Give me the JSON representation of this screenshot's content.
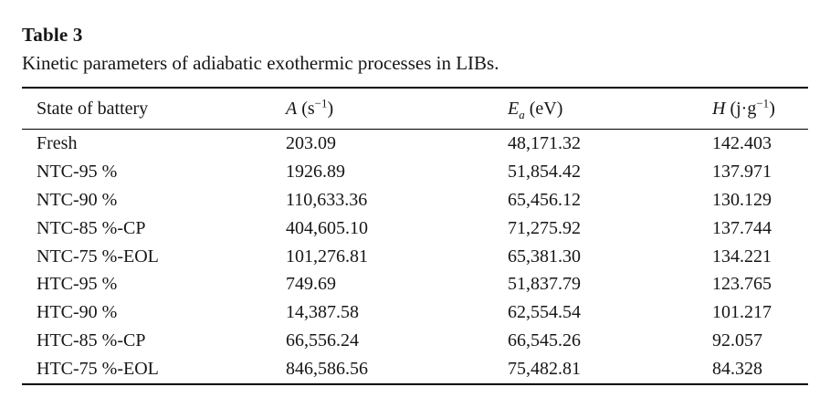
{
  "page": {
    "title": "Table 3",
    "caption": "Kinetic parameters of adiabatic exothermic processes in LIBs."
  },
  "table": {
    "columns": {
      "state": {
        "label": "State of battery"
      },
      "a": {
        "var": "A",
        "open": " (s",
        "sup": "−1",
        "close": ")"
      },
      "ea": {
        "var": "E",
        "sub": "a",
        "open": " (eV)",
        "sup": "",
        "close": ""
      },
      "h": {
        "var": "H",
        "open": " (j·g",
        "sup": "−1",
        "close": ")"
      }
    },
    "rows": [
      {
        "state": "Fresh",
        "a": "203.09",
        "ea": "48,171.32",
        "h": "142.403"
      },
      {
        "state": "NTC-95 %",
        "a": "1926.89",
        "ea": "51,854.42",
        "h": "137.971"
      },
      {
        "state": "NTC-90 %",
        "a": "110,633.36",
        "ea": "65,456.12",
        "h": "130.129"
      },
      {
        "state": "NTC-85 %-CP",
        "a": "404,605.10",
        "ea": "71,275.92",
        "h": "137.744"
      },
      {
        "state": "NTC-75 %-EOL",
        "a": "101,276.81",
        "ea": "65,381.30",
        "h": "134.221"
      },
      {
        "state": "HTC-95 %",
        "a": "749.69",
        "ea": "51,837.79",
        "h": "123.765"
      },
      {
        "state": "HTC-90 %",
        "a": "14,387.58",
        "ea": "62,554.54",
        "h": "101.217"
      },
      {
        "state": "HTC-85 %-CP",
        "a": "66,556.24",
        "ea": "66,545.26",
        "h": "92.057"
      },
      {
        "state": "HTC-75 %-EOL",
        "a": "846,586.56",
        "ea": "75,482.81",
        "h": "84.328"
      }
    ]
  }
}
